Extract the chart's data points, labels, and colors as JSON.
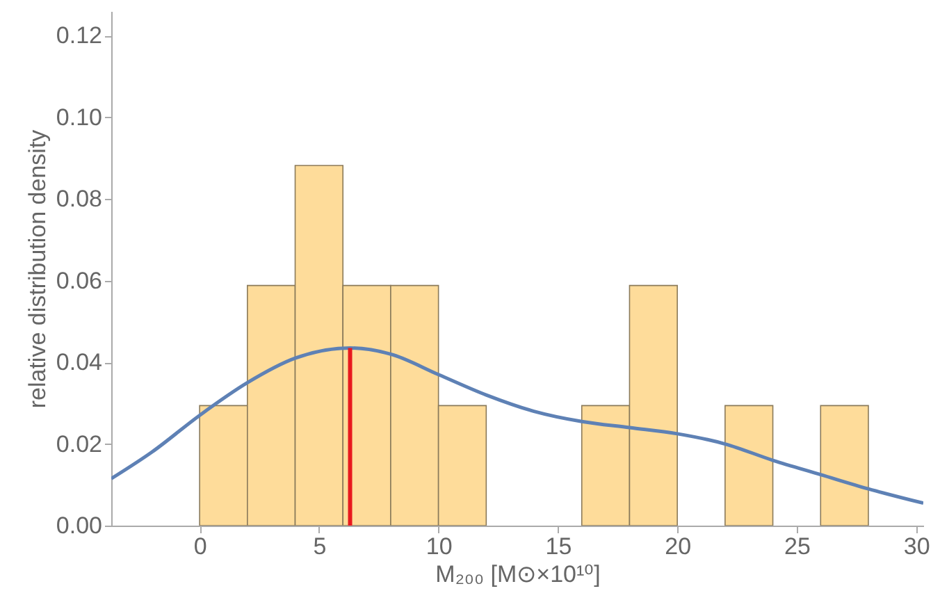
{
  "chart_data": {
    "type": "histogram",
    "xlabel": "M₂₀₀ [M⊙×10¹⁰]",
    "ylabel": "relative distribution density",
    "bins": [
      0,
      2,
      4,
      6,
      8,
      10,
      12,
      14,
      16,
      18,
      20,
      22,
      24,
      26,
      28
    ],
    "values": [
      0.0294,
      0.0588,
      0.0882,
      0.0588,
      0.0588,
      0.0294,
      0,
      0,
      0.0294,
      0.0588,
      0,
      0.0294,
      0,
      0.0294
    ],
    "color": "#fedc9a",
    "series": [
      {
        "type": "line",
        "color": "#5e81b5",
        "x": [
          -3.7,
          -2,
          0,
          2,
          4,
          6.3,
          8,
          10,
          12,
          14,
          16,
          18,
          20,
          22,
          24,
          26,
          28,
          30.3
        ],
        "values": [
          0.0115,
          0.018,
          0.027,
          0.035,
          0.041,
          0.0435,
          0.042,
          0.037,
          0.032,
          0.028,
          0.0255,
          0.024,
          0.0225,
          0.02,
          0.016,
          0.0125,
          0.009,
          0.0055
        ]
      },
      {
        "type": "line",
        "color": "#e8191e",
        "x": [
          6.3,
          6.3
        ],
        "values": [
          0,
          0.0435
        ]
      }
    ],
    "xlim": [
      -3.7,
      30.3
    ],
    "ylim": [
      0,
      0.126
    ],
    "xticks": [
      0,
      5,
      10,
      15,
      20,
      25,
      30
    ],
    "yticks": [
      {
        "value": 0,
        "label": "0.00"
      },
      {
        "value": 0.02,
        "label": "0.02"
      },
      {
        "value": 0.04,
        "label": "0.04"
      },
      {
        "value": 0.06,
        "label": "0.06"
      },
      {
        "value": 0.08,
        "label": "0.08"
      },
      {
        "value": 0.1,
        "label": "0.10"
      },
      {
        "value": 0.12,
        "label": "0.12"
      }
    ],
    "grid": false
  }
}
